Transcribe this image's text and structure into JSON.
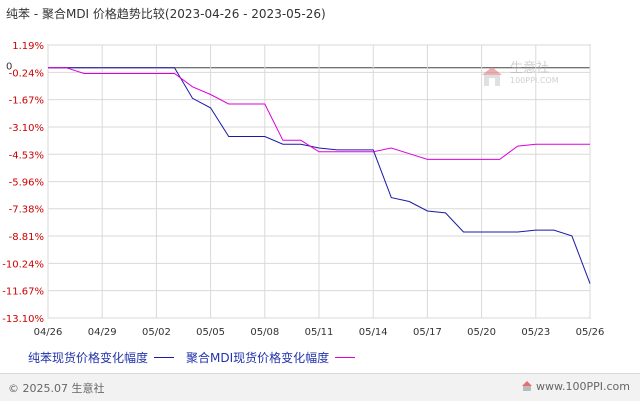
{
  "title": "纯苯 - 聚合MDI 价格趋势比较(2023-04-26 - 2023-05-26)",
  "watermark": {
    "cn": "生意社",
    "url": "100PPI.COM"
  },
  "footer": {
    "copyright": "© 2025.07 生意社",
    "site": "www.100PPI.com"
  },
  "colors": {
    "series1": "#1a1aa6",
    "series2": "#dd00dd",
    "axis": "#888888",
    "grid": "#d9d9d9",
    "ylabel_neg": "#cc0000"
  },
  "chart_data": {
    "type": "line",
    "y_tick_labels": [
      "1.19%",
      "-0.24%",
      "-1.67%",
      "-3.10%",
      "-4.53%",
      "-5.96%",
      "-7.38%",
      "-8.81%",
      "-10.24%",
      "-11.67%",
      "-13.10%"
    ],
    "y_ticks": [
      1.19,
      -0.24,
      -1.67,
      -3.1,
      -4.53,
      -5.96,
      -7.38,
      -8.81,
      -10.24,
      -11.67,
      -13.1
    ],
    "zero_label": "0",
    "ylim": [
      -13.1,
      1.19
    ],
    "x_tick_labels": [
      "04/26",
      "04/29",
      "05/02",
      "05/05",
      "05/08",
      "05/11",
      "05/14",
      "05/17",
      "05/20",
      "05/23",
      "05/26"
    ],
    "x_ticks": [
      0,
      3,
      6,
      9,
      12,
      15,
      18,
      21,
      24,
      27,
      30
    ],
    "xlim": [
      0,
      30
    ],
    "grid": true,
    "legend_position": "bottom",
    "series": [
      {
        "name": "纯苯现货价格变化幅度",
        "points": [
          [
            0,
            0
          ],
          [
            2,
            0
          ],
          [
            3,
            0
          ],
          [
            4,
            0
          ],
          [
            5,
            0
          ],
          [
            6,
            0
          ],
          [
            7,
            0
          ],
          [
            8,
            -1.6
          ],
          [
            9,
            -2.1
          ],
          [
            10,
            -3.6
          ],
          [
            11,
            -3.6
          ],
          [
            12,
            -3.6
          ],
          [
            13,
            -4.0
          ],
          [
            14,
            -4.0
          ],
          [
            15,
            -4.2
          ],
          [
            16,
            -4.3
          ],
          [
            17,
            -4.3
          ],
          [
            18,
            -4.3
          ],
          [
            19,
            -6.8
          ],
          [
            20,
            -7.0
          ],
          [
            21,
            -7.5
          ],
          [
            22,
            -7.6
          ],
          [
            23,
            -8.6
          ],
          [
            24,
            -8.6
          ],
          [
            25,
            -8.6
          ],
          [
            26,
            -8.6
          ],
          [
            27,
            -8.5
          ],
          [
            28,
            -8.5
          ],
          [
            29,
            -8.8
          ],
          [
            30,
            -11.3
          ]
        ]
      },
      {
        "name": "聚合MDI现货价格变化幅度",
        "points": [
          [
            0,
            0
          ],
          [
            1,
            0
          ],
          [
            2,
            -0.3
          ],
          [
            3,
            -0.3
          ],
          [
            4,
            -0.3
          ],
          [
            5,
            -0.3
          ],
          [
            6,
            -0.3
          ],
          [
            7,
            -0.3
          ],
          [
            8,
            -1.0
          ],
          [
            9,
            -1.4
          ],
          [
            10,
            -1.9
          ],
          [
            11,
            -1.9
          ],
          [
            12,
            -1.9
          ],
          [
            13,
            -3.8
          ],
          [
            14,
            -3.8
          ],
          [
            15,
            -4.4
          ],
          [
            16,
            -4.4
          ],
          [
            17,
            -4.4
          ],
          [
            18,
            -4.4
          ],
          [
            19,
            -4.2
          ],
          [
            20,
            -4.5
          ],
          [
            21,
            -4.8
          ],
          [
            22,
            -4.8
          ],
          [
            23,
            -4.8
          ],
          [
            24,
            -4.8
          ],
          [
            25,
            -4.8
          ],
          [
            26,
            -4.1
          ],
          [
            27,
            -4.0
          ],
          [
            28,
            -4.0
          ],
          [
            29,
            -4.0
          ],
          [
            30,
            -4.0
          ]
        ]
      }
    ]
  }
}
